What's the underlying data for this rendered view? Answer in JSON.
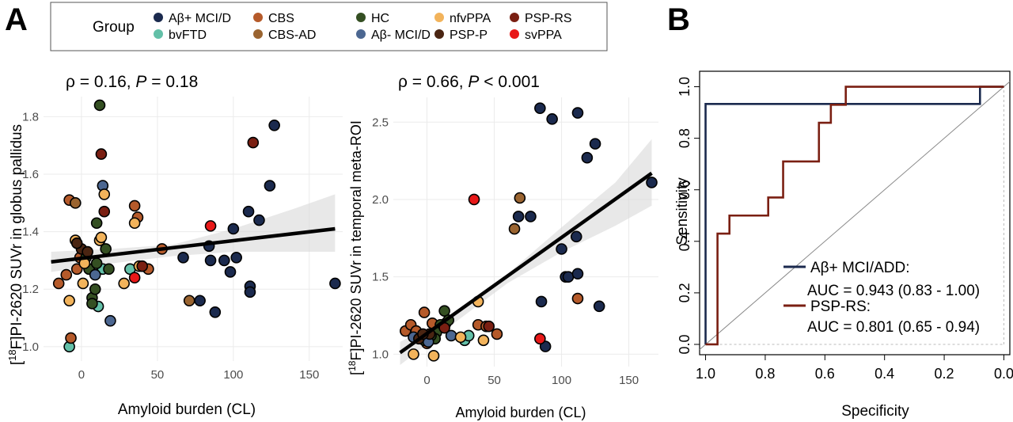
{
  "panel_labels": {
    "a": "A",
    "b": "B"
  },
  "legend": {
    "title": "Group",
    "items": [
      {
        "label": "Aβ+ MCI/D",
        "color": "#1b2a4e"
      },
      {
        "label": "bvFTD",
        "color": "#63c0a8"
      },
      {
        "label": "CBS",
        "color": "#b55a2a"
      },
      {
        "label": "CBS-AD",
        "color": "#9a6430"
      },
      {
        "label": "HC",
        "color": "#344f22"
      },
      {
        "label": "Aβ- MCI/D",
        "color": "#4c6791"
      },
      {
        "label": "nfvPPA",
        "color": "#f2b35b"
      },
      {
        "label": "PSP-P",
        "color": "#4a2512"
      },
      {
        "label": "PSP-RS",
        "color": "#7a1f12"
      },
      {
        "label": "svPPA",
        "color": "#e81818"
      }
    ]
  },
  "chart_data": [
    {
      "type": "scatter",
      "title_prefix": "ρ = 0.16, ",
      "title_italic": "P",
      "title_suffix": " = 0.18",
      "xlabel": "Amyloid burden (CL)",
      "ylabel_pre": "[",
      "ylabel_sup": "18",
      "ylabel_post": "F]PI-2620 SUVr in globus pallidus",
      "xlim": [
        -25,
        172
      ],
      "ylim": [
        0.95,
        1.87
      ],
      "xticks": [
        0,
        50,
        100,
        150
      ],
      "xticklabels": [
        "0",
        "50",
        "100",
        "150"
      ],
      "yticks": [
        1.0,
        1.2,
        1.4,
        1.6,
        1.8
      ],
      "yticklabels": [
        "1.0",
        "1.2",
        "1.4",
        "1.6",
        "1.8"
      ],
      "grid": true,
      "fit": {
        "x0": -20,
        "y0": 1.295,
        "x1": 167,
        "y1": 1.41
      },
      "band": [
        [
          -20,
          1.26,
          1.33
        ],
        [
          20,
          1.29,
          1.34
        ],
        [
          60,
          1.315,
          1.355
        ],
        [
          100,
          1.33,
          1.41
        ],
        [
          140,
          1.33,
          1.48
        ],
        [
          167,
          1.33,
          1.53
        ]
      ],
      "points": [
        {
          "x": 167,
          "y": 1.22,
          "g": 0
        },
        {
          "x": 127,
          "y": 1.77,
          "g": 0
        },
        {
          "x": 124,
          "y": 1.56,
          "g": 0
        },
        {
          "x": 117,
          "y": 1.44,
          "g": 0
        },
        {
          "x": 110,
          "y": 1.47,
          "g": 0
        },
        {
          "x": 100,
          "y": 1.41,
          "g": 0
        },
        {
          "x": 111,
          "y": 1.21,
          "g": 0
        },
        {
          "x": 111,
          "y": 1.19,
          "g": 0
        },
        {
          "x": 102,
          "y": 1.31,
          "g": 0
        },
        {
          "x": 98,
          "y": 1.26,
          "g": 0
        },
        {
          "x": 94,
          "y": 1.3,
          "g": 0
        },
        {
          "x": 88,
          "y": 1.12,
          "g": 0
        },
        {
          "x": 84,
          "y": 1.35,
          "g": 0
        },
        {
          "x": 85,
          "y": 1.3,
          "g": 0
        },
        {
          "x": 78,
          "y": 1.16,
          "g": 0
        },
        {
          "x": 67,
          "y": 1.31,
          "g": 0
        },
        {
          "x": -8,
          "y": 1.0,
          "g": 1
        },
        {
          "x": 11,
          "y": 1.14,
          "g": 1
        },
        {
          "x": 32,
          "y": 1.27,
          "g": 1
        },
        {
          "x": 14,
          "y": 1.27,
          "g": 1
        },
        {
          "x": -15,
          "y": 1.22,
          "g": 2
        },
        {
          "x": -8,
          "y": 1.51,
          "g": 2
        },
        {
          "x": -10,
          "y": 1.25,
          "g": 2
        },
        {
          "x": -3,
          "y": 1.27,
          "g": 2
        },
        {
          "x": 2,
          "y": 1.32,
          "g": 2
        },
        {
          "x": 35,
          "y": 1.49,
          "g": 2
        },
        {
          "x": 37,
          "y": 1.45,
          "g": 2
        },
        {
          "x": 44,
          "y": 1.27,
          "g": 2
        },
        {
          "x": 53,
          "y": 1.34,
          "g": 2
        },
        {
          "x": -7,
          "y": 1.03,
          "g": 2
        },
        {
          "x": -1,
          "y": 1.31,
          "g": 2
        },
        {
          "x": 5,
          "y": 1.27,
          "g": 2
        },
        {
          "x": -4,
          "y": 1.5,
          "g": 3
        },
        {
          "x": 71,
          "y": 1.16,
          "g": 3
        },
        {
          "x": 12,
          "y": 1.84,
          "g": 4
        },
        {
          "x": 10,
          "y": 1.43,
          "g": 4
        },
        {
          "x": 16,
          "y": 1.34,
          "g": 4
        },
        {
          "x": 7,
          "y": 1.17,
          "g": 4
        },
        {
          "x": 9,
          "y": 1.2,
          "g": 4
        },
        {
          "x": 7,
          "y": 1.15,
          "g": 4
        },
        {
          "x": 5,
          "y": 1.27,
          "g": 4
        },
        {
          "x": 10,
          "y": 1.29,
          "g": 4
        },
        {
          "x": 18,
          "y": 1.27,
          "g": 4
        },
        {
          "x": 3,
          "y": 1.31,
          "g": 4
        },
        {
          "x": 14,
          "y": 1.56,
          "g": 5
        },
        {
          "x": 19,
          "y": 1.09,
          "g": 5
        },
        {
          "x": 9,
          "y": 1.25,
          "g": 5
        },
        {
          "x": -8,
          "y": 1.16,
          "g": 6
        },
        {
          "x": 15,
          "y": 1.53,
          "g": 6
        },
        {
          "x": 12,
          "y": 1.37,
          "g": 6
        },
        {
          "x": 1,
          "y": 1.22,
          "g": 6
        },
        {
          "x": 28,
          "y": 1.22,
          "g": 6
        },
        {
          "x": 38,
          "y": 1.28,
          "g": 6
        },
        {
          "x": 35,
          "y": 1.43,
          "g": 6
        },
        {
          "x": 13,
          "y": 1.38,
          "g": 6
        },
        {
          "x": -4,
          "y": 1.37,
          "g": 6
        },
        {
          "x": 2,
          "y": 1.29,
          "g": 6
        },
        {
          "x": 0,
          "y": 1.34,
          "g": 7
        },
        {
          "x": -3,
          "y": 1.36,
          "g": 7
        },
        {
          "x": 4,
          "y": 1.33,
          "g": 7
        },
        {
          "x": 13,
          "y": 1.67,
          "g": 8
        },
        {
          "x": 113,
          "y": 1.71,
          "g": 8
        },
        {
          "x": 15,
          "y": 1.47,
          "g": 8
        },
        {
          "x": 40,
          "y": 1.28,
          "g": 8
        },
        {
          "x": 85,
          "y": 1.42,
          "g": 9
        },
        {
          "x": 35,
          "y": 1.24,
          "g": 9
        }
      ]
    },
    {
      "type": "scatter",
      "title_prefix": "ρ = 0.66, ",
      "title_italic": "P",
      "title_suffix": " < 0.001",
      "xlabel": "Amyloid burden (CL)",
      "ylabel_pre": "[",
      "ylabel_sup": "18",
      "ylabel_post": "F]PI-2620 SUVr in temporal meta-ROI",
      "xlim": [
        -25,
        172
      ],
      "ylim": [
        0.92,
        2.66
      ],
      "xticks": [
        0,
        50,
        100,
        150
      ],
      "xticklabels": [
        "0",
        "50",
        "100",
        "150"
      ],
      "yticks": [
        1.0,
        1.5,
        2.0,
        2.5
      ],
      "yticklabels": [
        "1.0",
        "1.5",
        "2.0",
        "2.5"
      ],
      "grid": true,
      "fit": {
        "x0": -20,
        "y0": 1.01,
        "x1": 167,
        "y1": 2.17
      },
      "band": [
        [
          -20,
          0.93,
          1.08
        ],
        [
          20,
          1.2,
          1.26
        ],
        [
          60,
          1.46,
          1.52
        ],
        [
          100,
          1.66,
          1.82
        ],
        [
          140,
          1.83,
          2.11
        ],
        [
          167,
          1.96,
          2.39
        ]
      ],
      "points": [
        {
          "x": 84,
          "y": 2.59,
          "g": 0
        },
        {
          "x": 93,
          "y": 2.52,
          "g": 0
        },
        {
          "x": 112,
          "y": 2.56,
          "g": 0
        },
        {
          "x": 125,
          "y": 2.36,
          "g": 0
        },
        {
          "x": 119,
          "y": 2.27,
          "g": 0
        },
        {
          "x": 167,
          "y": 2.11,
          "g": 0
        },
        {
          "x": 68,
          "y": 1.89,
          "g": 0
        },
        {
          "x": 77,
          "y": 1.89,
          "g": 0
        },
        {
          "x": 100,
          "y": 1.68,
          "g": 0
        },
        {
          "x": 111,
          "y": 1.76,
          "g": 0
        },
        {
          "x": 103,
          "y": 1.5,
          "g": 0
        },
        {
          "x": 105,
          "y": 1.5,
          "g": 0
        },
        {
          "x": 112,
          "y": 1.52,
          "g": 0
        },
        {
          "x": 128,
          "y": 1.31,
          "g": 0
        },
        {
          "x": 85,
          "y": 1.34,
          "g": 0
        },
        {
          "x": 88,
          "y": 1.05,
          "g": 0
        },
        {
          "x": 28,
          "y": 1.09,
          "g": 1
        },
        {
          "x": 31,
          "y": 1.12,
          "g": 1
        },
        {
          "x": 14,
          "y": 1.2,
          "g": 1
        },
        {
          "x": -16,
          "y": 1.15,
          "g": 2
        },
        {
          "x": -12,
          "y": 1.19,
          "g": 2
        },
        {
          "x": -8,
          "y": 1.15,
          "g": 2
        },
        {
          "x": -2,
          "y": 1.27,
          "g": 2
        },
        {
          "x": 4,
          "y": 1.2,
          "g": 2
        },
        {
          "x": 38,
          "y": 1.19,
          "g": 2
        },
        {
          "x": 44,
          "y": 1.18,
          "g": 2
        },
        {
          "x": 52,
          "y": 1.13,
          "g": 2
        },
        {
          "x": 112,
          "y": 1.36,
          "g": 2
        },
        {
          "x": 0,
          "y": 1.07,
          "g": 2
        },
        {
          "x": 69,
          "y": 2.01,
          "g": 3
        },
        {
          "x": 65,
          "y": 1.81,
          "g": 3
        },
        {
          "x": 13,
          "y": 1.28,
          "g": 4
        },
        {
          "x": 10,
          "y": 1.19,
          "g": 4
        },
        {
          "x": 16,
          "y": 1.22,
          "g": 4
        },
        {
          "x": 7,
          "y": 1.14,
          "g": 4
        },
        {
          "x": 6,
          "y": 1.1,
          "g": 4
        },
        {
          "x": 3,
          "y": 1.12,
          "g": 4
        },
        {
          "x": -2,
          "y": 1.09,
          "g": 4
        },
        {
          "x": 18,
          "y": 1.12,
          "g": 5
        },
        {
          "x": -10,
          "y": 1.11,
          "g": 5
        },
        {
          "x": 1,
          "y": 1.08,
          "g": 5
        },
        {
          "x": 38,
          "y": 1.34,
          "g": 6
        },
        {
          "x": 42,
          "y": 1.09,
          "g": 6
        },
        {
          "x": 5,
          "y": 0.99,
          "g": 6
        },
        {
          "x": -10,
          "y": 1.0,
          "g": 6
        },
        {
          "x": 25,
          "y": 1.11,
          "g": 6
        },
        {
          "x": -6,
          "y": 1.1,
          "g": 7
        },
        {
          "x": 2,
          "y": 1.13,
          "g": 7
        },
        {
          "x": -3,
          "y": 1.13,
          "g": 7
        },
        {
          "x": 46,
          "y": 1.18,
          "g": 8
        },
        {
          "x": 13,
          "y": 1.17,
          "g": 8
        },
        {
          "x": 35,
          "y": 2.0,
          "g": 9
        },
        {
          "x": 84,
          "y": 1.1,
          "g": 9
        }
      ]
    },
    {
      "type": "line",
      "xlabel": "Specificity",
      "ylabel": "Sensitivity",
      "xlim": [
        1.02,
        -0.02
      ],
      "ylim": [
        -0.04,
        1.06
      ],
      "xticks": [
        1.0,
        0.8,
        0.6,
        0.4,
        0.2,
        0.0
      ],
      "xticklabels": [
        "1.0",
        "0.8",
        "0.6",
        "0.4",
        "0.2",
        "0.0"
      ],
      "yticks": [
        0.0,
        0.2,
        0.4,
        0.6,
        0.8,
        1.0
      ],
      "yticklabels": [
        "0.0",
        "0.2",
        "0.4",
        "0.6",
        "0.8",
        "1.0"
      ],
      "series": [
        {
          "name": "Aβ+ MCI/ADD:",
          "auc": "AUC = 0.943 (0.83 - 1.00)",
          "color": "#1b2a4e",
          "x": [
            1.0,
            1.0,
            0.92,
            0.92,
            0.08,
            0.08,
            0.0
          ],
          "y": [
            0.0,
            0.933,
            0.933,
            0.933,
            0.933,
            1.0,
            1.0
          ]
        },
        {
          "name": "PSP-RS:",
          "auc": "AUC = 0.801 (0.65 - 0.94)",
          "color": "#7a1f12",
          "x": [
            1.0,
            0.96,
            0.96,
            0.92,
            0.92,
            0.89,
            0.89,
            0.79,
            0.79,
            0.74,
            0.74,
            0.62,
            0.62,
            0.58,
            0.58,
            0.53,
            0.53,
            0.0
          ],
          "y": [
            0.0,
            0.0,
            0.43,
            0.43,
            0.5,
            0.5,
            0.5,
            0.5,
            0.57,
            0.57,
            0.71,
            0.71,
            0.86,
            0.86,
            0.93,
            0.93,
            1.0,
            1.0
          ]
        }
      ]
    }
  ]
}
